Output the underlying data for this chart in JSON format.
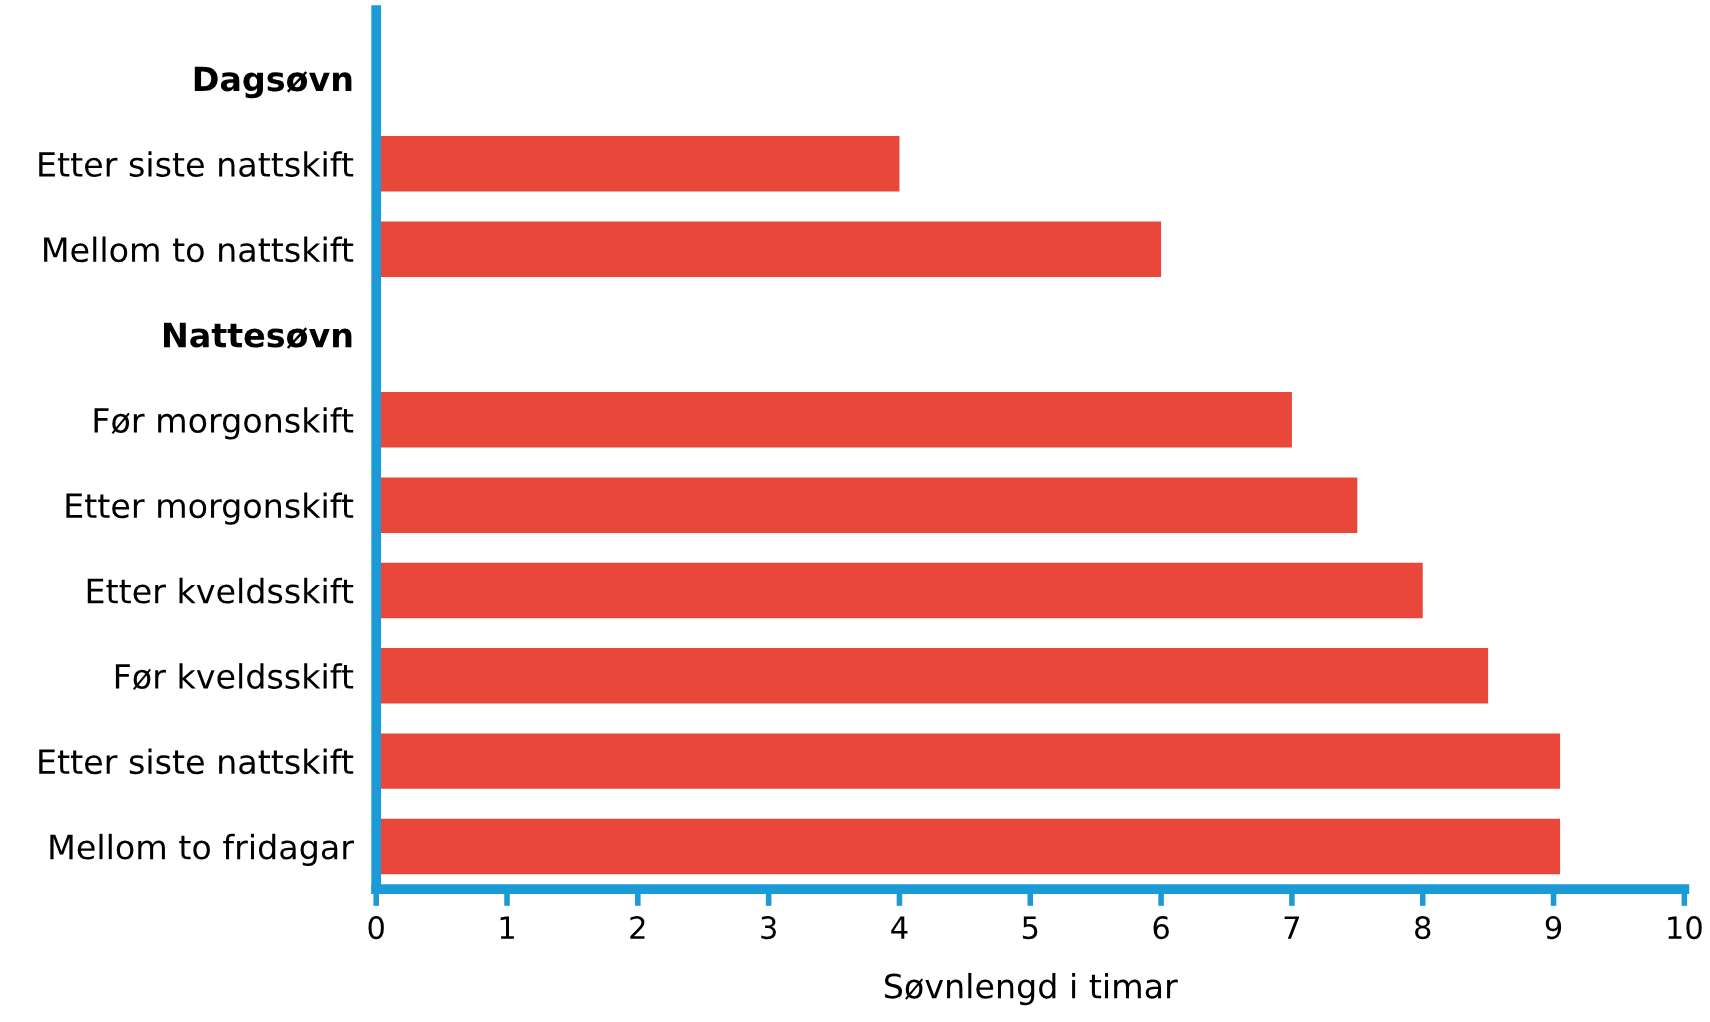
{
  "chart_data": {
    "type": "bar",
    "orientation": "horizontal",
    "xlabel": "Søvnlengd i timar",
    "categories": [
      "Dagsøvn",
      "Etter siste nattskift",
      "Mellom to nattskift",
      "Nattesøvn",
      "Før morgonskift",
      "Etter morgonskift",
      "Etter kveldsskift",
      "Før kveldsskift",
      "Etter siste nattskift",
      "Mellom to fridagar"
    ],
    "values": [
      null,
      4,
      6,
      null,
      7,
      7.5,
      8,
      8.5,
      9.05,
      9.05
    ],
    "color": "#e8473a",
    "xlim": [
      0,
      10
    ],
    "xticks": [
      0,
      1,
      2,
      3,
      4,
      5,
      6,
      7,
      8,
      9,
      10
    ],
    "grid": false,
    "legend": false
  }
}
